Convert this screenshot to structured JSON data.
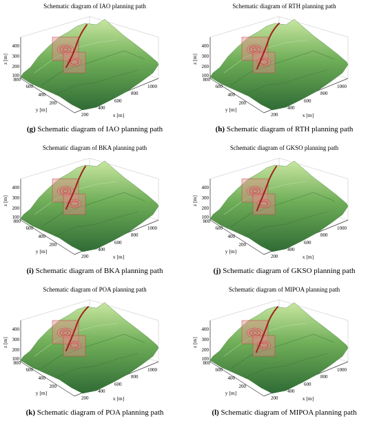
{
  "axes": {
    "z_label": "z [m]",
    "y_label": "y [m]",
    "x_label": "x [m]",
    "z_ticks": [
      "100",
      "200",
      "300",
      "400"
    ],
    "y_ticks": [
      "200",
      "400",
      "600",
      "800"
    ],
    "x_ticks": [
      "200",
      "400",
      "600",
      "800",
      "1000"
    ]
  },
  "colors": {
    "terrain_light": "#c8e6a0",
    "terrain_mid": "#6fae58",
    "terrain_dark": "#2f6b35",
    "threat_zone": "#e58a8a",
    "path": "#a0201a"
  },
  "panels": [
    {
      "title": "Schematic diagram of IAO planning path",
      "caption_letter": "(g)",
      "caption_text": " Schematic diagram of IAO planning path"
    },
    {
      "title": "Schematic diagram of RTH planning path",
      "caption_letter": "(h)",
      "caption_text": " Schematic diagram of RTH planning path"
    },
    {
      "title": "Schematic diagram of BKA planning path",
      "caption_letter": "(i)",
      "caption_text": " Schematic diagram of BKA planning path"
    },
    {
      "title": "Schematic diagram of GKSO planning path",
      "caption_letter": "(j)",
      "caption_text": " Schematic diagram of GKSO planning path"
    },
    {
      "title": "Schematic diagram of POA planning path",
      "caption_letter": "(k)",
      "caption_text": " Schematic diagram of POA planning path"
    },
    {
      "title": "Schematic diagram of MIPOA planning path",
      "caption_letter": "(l)",
      "caption_text": " Schematic diagram of MIPOA planning path"
    }
  ]
}
